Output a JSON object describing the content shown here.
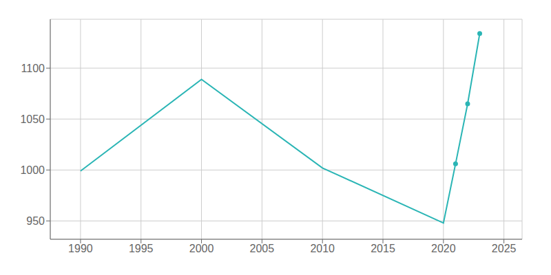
{
  "chart_data": {
    "type": "line",
    "x": [
      1990,
      2000,
      2010,
      2020,
      2021,
      2022,
      2023
    ],
    "series": [
      {
        "color": "#2ab5b5",
        "values": [
          999,
          1089,
          1002,
          948,
          1006,
          1065,
          1134
        ]
      },
      {
        "color": "#2ab5b5",
        "marker": "o",
        "line_style": "none",
        "values": [
          null,
          null,
          null,
          null,
          1006,
          1065,
          1134
        ]
      }
    ],
    "xlim": [
      1987.5,
      2026.5
    ],
    "ylim": [
      932,
      1148
    ],
    "xticks": [
      1990,
      1995,
      2000,
      2005,
      2010,
      2015,
      2020,
      2025
    ],
    "yticks": [
      950,
      1000,
      1050,
      1100
    ],
    "grid": true
  }
}
